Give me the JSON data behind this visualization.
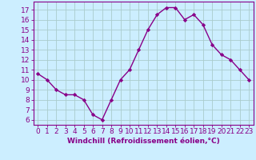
{
  "x": [
    0,
    1,
    2,
    3,
    4,
    5,
    6,
    7,
    8,
    9,
    10,
    11,
    12,
    13,
    14,
    15,
    16,
    17,
    18,
    19,
    20,
    21,
    22,
    23
  ],
  "y": [
    10.6,
    10.0,
    9.0,
    8.5,
    8.5,
    8.0,
    6.5,
    6.0,
    8.0,
    10.0,
    11.0,
    13.0,
    15.0,
    16.5,
    17.2,
    17.2,
    16.0,
    16.5,
    15.5,
    13.5,
    12.5,
    12.0,
    11.0,
    10.0
  ],
  "line_color": "#880088",
  "marker": "D",
  "marker_size": 2.2,
  "linewidth": 1.0,
  "bg_color": "#cceeff",
  "grid_color": "#aacccc",
  "xlabel": "Windchill (Refroidissement éolien,°C)",
  "xlabel_fontsize": 6.5,
  "xlabel_color": "#880088",
  "ylim": [
    5.5,
    17.8
  ],
  "xlim": [
    -0.5,
    23.5
  ],
  "tick_color": "#880088",
  "tick_fontsize": 6.5,
  "axis_color": "#880088",
  "yticks": [
    6,
    7,
    8,
    9,
    10,
    11,
    12,
    13,
    14,
    15,
    16,
    17
  ]
}
